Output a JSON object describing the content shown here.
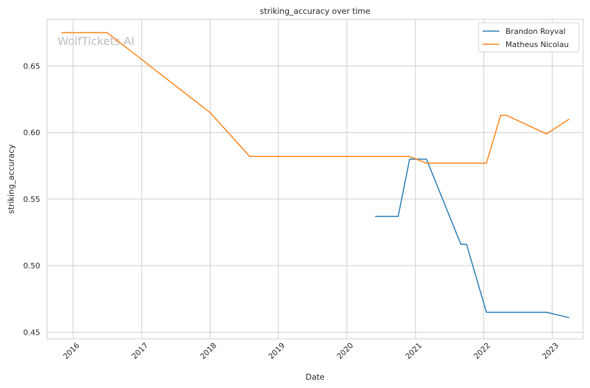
{
  "chart_data": {
    "type": "line",
    "title": "striking_accuracy over time",
    "xlabel": "Date",
    "ylabel": "striking_accuracy",
    "watermark": "WolfTickets.AI",
    "x_type": "date",
    "xlim": [
      "2015-08-15",
      "2023-06-15"
    ],
    "ylim": [
      0.445,
      0.685
    ],
    "x_ticks": [
      "2016",
      "2017",
      "2018",
      "2019",
      "2020",
      "2021",
      "2022",
      "2023"
    ],
    "y_ticks": [
      "0.45",
      "0.50",
      "0.55",
      "0.60",
      "0.65"
    ],
    "grid": true,
    "legend_position": "top-right",
    "series": [
      {
        "name": "Brandon Royval",
        "color": "#1f77b4",
        "points": [
          {
            "x": "2020-06-01",
            "y": 0.537
          },
          {
            "x": "2020-10-01",
            "y": 0.537
          },
          {
            "x": "2020-12-01",
            "y": 0.58
          },
          {
            "x": "2021-03-01",
            "y": 0.58
          },
          {
            "x": "2021-09-01",
            "y": 0.516
          },
          {
            "x": "2021-10-01",
            "y": 0.516
          },
          {
            "x": "2022-01-15",
            "y": 0.465
          },
          {
            "x": "2022-04-01",
            "y": 0.465
          },
          {
            "x": "2022-05-01",
            "y": 0.465
          },
          {
            "x": "2022-12-01",
            "y": 0.465
          },
          {
            "x": "2023-04-01",
            "y": 0.461
          }
        ]
      },
      {
        "name": "Matheus Nicolau",
        "color": "#ff7f0e",
        "points": [
          {
            "x": "2015-11-01",
            "y": 0.675
          },
          {
            "x": "2016-07-01",
            "y": 0.675
          },
          {
            "x": "2018-01-01",
            "y": 0.615
          },
          {
            "x": "2018-08-01",
            "y": 0.582
          },
          {
            "x": "2020-12-01",
            "y": 0.582
          },
          {
            "x": "2021-03-01",
            "y": 0.577
          },
          {
            "x": "2021-09-01",
            "y": 0.577
          },
          {
            "x": "2021-10-01",
            "y": 0.577
          },
          {
            "x": "2022-01-15",
            "y": 0.577
          },
          {
            "x": "2022-04-01",
            "y": 0.613
          },
          {
            "x": "2022-05-01",
            "y": 0.613
          },
          {
            "x": "2022-12-01",
            "y": 0.599
          },
          {
            "x": "2023-04-01",
            "y": 0.61
          }
        ]
      }
    ]
  }
}
